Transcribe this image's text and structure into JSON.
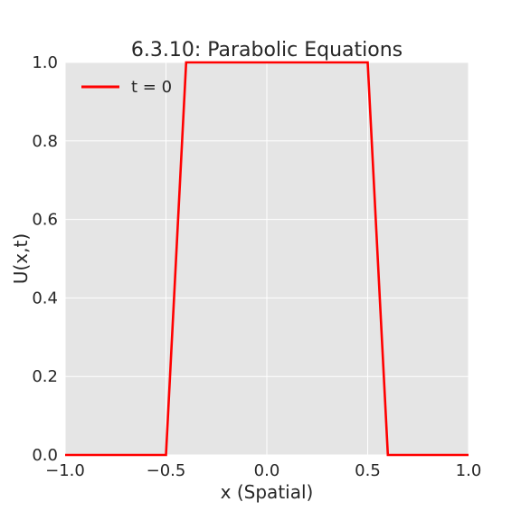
{
  "chart_data": {
    "type": "line",
    "title": "6.3.10: Parabolic Equations",
    "xlabel": "x (Spatial)",
    "ylabel": "U(x,t)",
    "xlim": [
      -1.0,
      1.0
    ],
    "ylim": [
      0.0,
      1.0
    ],
    "xticks": [
      -1.0,
      -0.5,
      0.0,
      0.5,
      1.0
    ],
    "xtick_labels": [
      "−1.0",
      "−0.5",
      "0.0",
      "0.5",
      "1.0"
    ],
    "yticks": [
      0.0,
      0.2,
      0.4,
      0.6,
      0.8,
      1.0
    ],
    "ytick_labels": [
      "0.0",
      "0.2",
      "0.4",
      "0.6",
      "0.8",
      "1.0"
    ],
    "grid": true,
    "legend_position": "top-left",
    "series": [
      {
        "name": "t = 0",
        "color": "#ff0000",
        "x": [
          -1.0,
          -0.5,
          -0.4,
          0.5,
          0.6,
          1.0
        ],
        "y": [
          0.0,
          0.0,
          1.0,
          1.0,
          0.0,
          0.0
        ]
      }
    ]
  }
}
